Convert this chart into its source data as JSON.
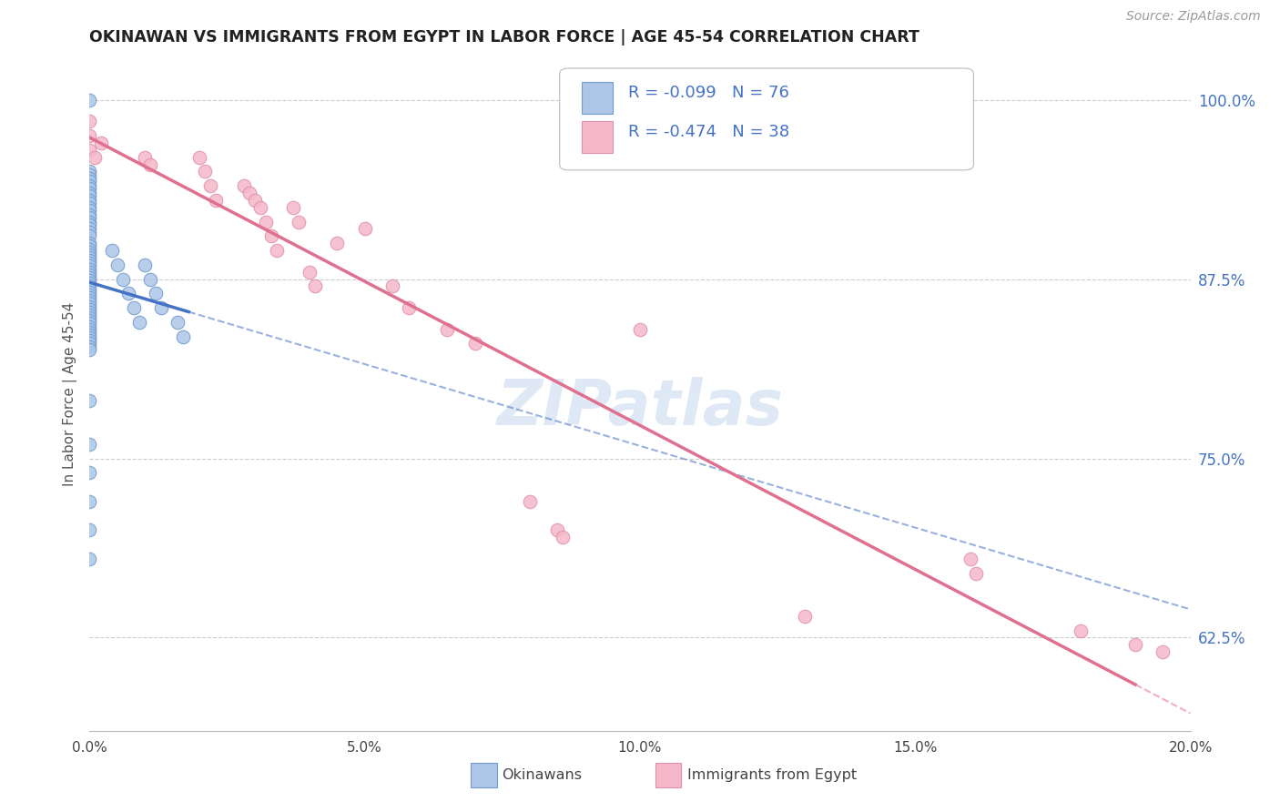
{
  "title": "OKINAWAN VS IMMIGRANTS FROM EGYPT IN LABOR FORCE | AGE 45-54 CORRELATION CHART",
  "source": "Source: ZipAtlas.com",
  "ylabel": "In Labor Force | Age 45-54",
  "xlim": [
    0.0,
    0.2
  ],
  "ylim": [
    0.56,
    1.03
  ],
  "ytick_labels": [
    "62.5%",
    "75.0%",
    "87.5%",
    "100.0%"
  ],
  "ytick_values": [
    0.625,
    0.75,
    0.875,
    1.0
  ],
  "xtick_labels": [
    "0.0%",
    "5.0%",
    "10.0%",
    "15.0%",
    "20.0%"
  ],
  "xtick_values": [
    0.0,
    0.05,
    0.1,
    0.15,
    0.2
  ],
  "legend_label1": "Okinawans",
  "legend_label2": "Immigrants from Egypt",
  "R1": -0.099,
  "N1": 76,
  "R2": -0.474,
  "N2": 38,
  "color1": "#adc6e8",
  "color2": "#f5b8cb",
  "trendline1_color": "#4472c4",
  "trendline2_color": "#e07090",
  "watermark": "ZIPatlas",
  "okinawan_x": [
    0.0,
    0.0,
    0.0,
    0.0,
    0.0,
    0.0,
    0.0,
    0.0,
    0.0,
    0.0,
    0.0,
    0.0,
    0.0,
    0.0,
    0.0,
    0.0,
    0.0,
    0.0,
    0.0,
    0.0,
    0.0,
    0.0,
    0.0,
    0.0,
    0.0,
    0.0,
    0.0,
    0.0,
    0.0,
    0.0,
    0.0,
    0.0,
    0.0,
    0.0,
    0.0,
    0.0,
    0.0,
    0.0,
    0.0,
    0.0,
    0.0,
    0.0,
    0.0,
    0.0,
    0.0,
    0.0,
    0.0,
    0.0,
    0.0,
    0.0,
    0.0,
    0.0,
    0.0,
    0.0,
    0.0,
    0.0,
    0.0,
    0.0,
    0.0,
    0.0,
    0.0,
    0.0,
    0.0,
    0.0,
    0.004,
    0.005,
    0.006,
    0.007,
    0.008,
    0.009,
    0.01,
    0.011,
    0.012,
    0.013,
    0.016,
    0.017
  ],
  "okinawan_y": [
    1.0,
    0.95,
    0.948,
    0.945,
    0.943,
    0.94,
    0.938,
    0.935,
    0.933,
    0.93,
    0.928,
    0.925,
    0.923,
    0.92,
    0.918,
    0.915,
    0.913,
    0.91,
    0.908,
    0.905,
    0.9,
    0.898,
    0.896,
    0.894,
    0.892,
    0.89,
    0.888,
    0.886,
    0.884,
    0.882,
    0.88,
    0.878,
    0.876,
    0.874,
    0.872,
    0.87,
    0.868,
    0.866,
    0.864,
    0.862,
    0.86,
    0.858,
    0.856,
    0.854,
    0.852,
    0.85,
    0.848,
    0.846,
    0.844,
    0.842,
    0.84,
    0.838,
    0.836,
    0.834,
    0.832,
    0.83,
    0.828,
    0.826,
    0.79,
    0.76,
    0.74,
    0.72,
    0.7,
    0.68,
    0.895,
    0.885,
    0.875,
    0.865,
    0.855,
    0.845,
    0.885,
    0.875,
    0.865,
    0.855,
    0.845,
    0.835
  ],
  "egypt_x": [
    0.0,
    0.0,
    0.0,
    0.001,
    0.002,
    0.01,
    0.011,
    0.02,
    0.021,
    0.022,
    0.023,
    0.028,
    0.029,
    0.03,
    0.031,
    0.032,
    0.033,
    0.034,
    0.037,
    0.038,
    0.04,
    0.041,
    0.045,
    0.05,
    0.055,
    0.058,
    0.065,
    0.07,
    0.08,
    0.085,
    0.086,
    0.1,
    0.13,
    0.16,
    0.161,
    0.18,
    0.19,
    0.195
  ],
  "egypt_y": [
    0.985,
    0.975,
    0.965,
    0.96,
    0.97,
    0.96,
    0.955,
    0.96,
    0.95,
    0.94,
    0.93,
    0.94,
    0.935,
    0.93,
    0.925,
    0.915,
    0.905,
    0.895,
    0.925,
    0.915,
    0.88,
    0.87,
    0.9,
    0.91,
    0.87,
    0.855,
    0.84,
    0.83,
    0.72,
    0.7,
    0.695,
    0.84,
    0.64,
    0.68,
    0.67,
    0.63,
    0.62,
    0.615
  ]
}
